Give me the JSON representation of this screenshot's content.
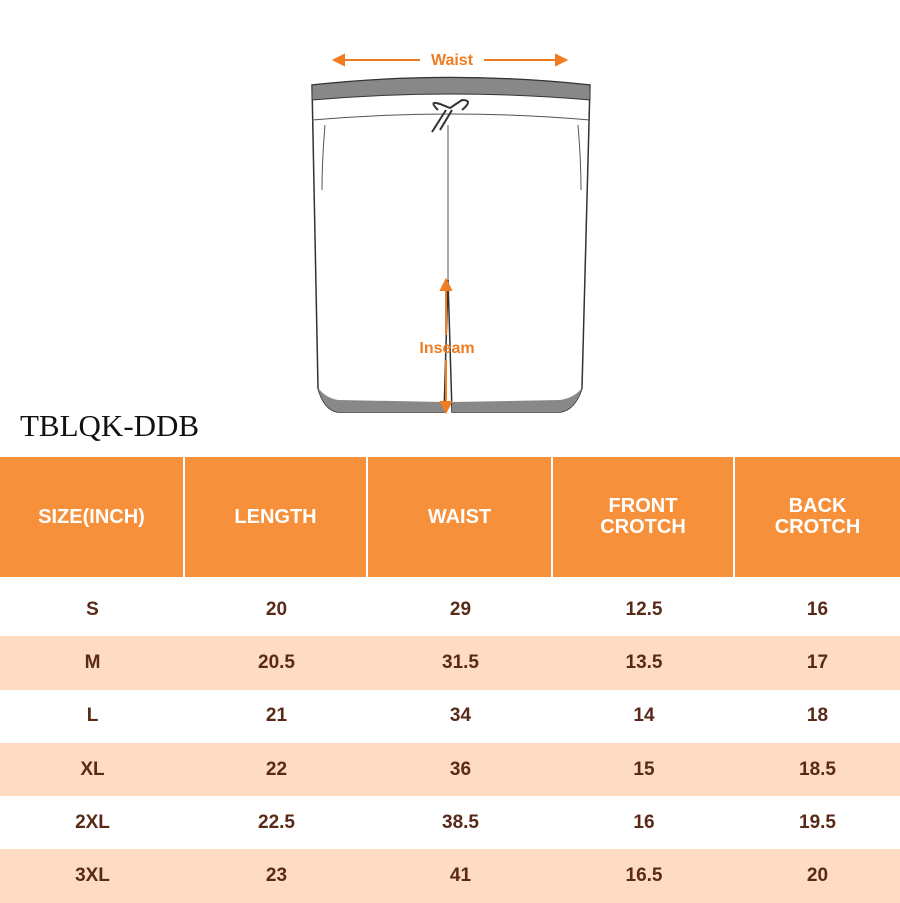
{
  "diagram": {
    "waist_label": "Waist",
    "inseam_label": "Inseam"
  },
  "header": {
    "title": "TBLQK-DDB"
  },
  "table": {
    "columns": [
      "SIZE(INCH)",
      "LENGTH",
      "WAIST",
      "FRONT CROTCH",
      "BACK CROTCH"
    ],
    "rows": [
      [
        "S",
        "20",
        "29",
        "12.5",
        "16"
      ],
      [
        "M",
        "20.5",
        "31.5",
        "13.5",
        "17"
      ],
      [
        "L",
        "21",
        "34",
        "14",
        "18"
      ],
      [
        "XL",
        "22",
        "36",
        "15",
        "18.5"
      ],
      [
        "2XL",
        "22.5",
        "38.5",
        "16",
        "19.5"
      ],
      [
        "3XL",
        "23",
        "41",
        "16.5",
        "20"
      ]
    ]
  }
}
